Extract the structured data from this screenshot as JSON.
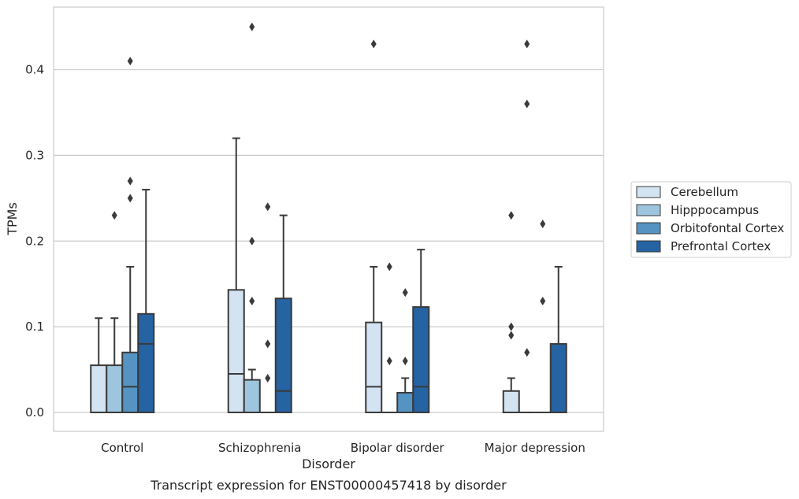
{
  "chart_data": {
    "type": "box",
    "xlabel": "Disorder",
    "ylabel": "TPMs",
    "caption": "Transcript expression for ENST00000457418 by disorder",
    "ylim": [
      -0.022,
      0.475
    ],
    "yticks": [
      0.0,
      0.1,
      0.2,
      0.3,
      0.4
    ],
    "ytick_labels": [
      "0.0",
      "0.1",
      "0.2",
      "0.3",
      "0.4"
    ],
    "grid": "horizontal",
    "legend_position": "right",
    "categories": [
      "Control",
      "Schizophrenia",
      "Bipolar disorder",
      "Major depression"
    ],
    "series": [
      {
        "name": "Cerebellum",
        "color": "#d3e3f1",
        "boxes": [
          {
            "whislo": 0.0,
            "q1": 0.0,
            "med": 0.0,
            "q3": 0.055,
            "whishi": 0.11,
            "fliers": []
          },
          {
            "whislo": 0.0,
            "q1": 0.0,
            "med": 0.045,
            "q3": 0.143,
            "whishi": 0.32,
            "fliers": []
          },
          {
            "whislo": 0.0,
            "q1": 0.0,
            "med": 0.03,
            "q3": 0.105,
            "whishi": 0.17,
            "fliers": [
              0.43
            ]
          },
          {
            "whislo": 0.0,
            "q1": 0.0,
            "med": 0.0,
            "q3": 0.025,
            "whishi": 0.04,
            "fliers": [
              0.09,
              0.1,
              0.23
            ]
          }
        ]
      },
      {
        "name": "Hipppocampus",
        "color": "#9ec5de",
        "boxes": [
          {
            "whislo": 0.0,
            "q1": 0.0,
            "med": 0.0,
            "q3": 0.055,
            "whishi": 0.11,
            "fliers": [
              0.23
            ]
          },
          {
            "whislo": 0.0,
            "q1": 0.0,
            "med": 0.0,
            "q3": 0.038,
            "whishi": 0.05,
            "fliers": [
              0.13,
              0.2,
              0.45
            ]
          },
          {
            "whislo": 0.0,
            "q1": 0.0,
            "med": 0.0,
            "q3": 0.0,
            "whishi": 0.0,
            "fliers": [
              0.06,
              0.17
            ]
          },
          {
            "whislo": 0.0,
            "q1": 0.0,
            "med": 0.0,
            "q3": 0.0,
            "whishi": 0.0,
            "fliers": [
              0.07,
              0.36,
              0.43
            ]
          }
        ]
      },
      {
        "name": "Orbitofontal Cortex",
        "color": "#5593c3",
        "boxes": [
          {
            "whislo": 0.0,
            "q1": 0.0,
            "med": 0.03,
            "q3": 0.07,
            "whishi": 0.17,
            "fliers": [
              0.25,
              0.27,
              0.41
            ]
          },
          {
            "whislo": 0.0,
            "q1": 0.0,
            "med": 0.0,
            "q3": 0.0,
            "whishi": 0.0,
            "fliers": [
              0.04,
              0.08,
              0.24
            ]
          },
          {
            "whislo": 0.0,
            "q1": 0.0,
            "med": 0.0,
            "q3": 0.023,
            "whishi": 0.04,
            "fliers": [
              0.06,
              0.14
            ]
          },
          {
            "whislo": 0.0,
            "q1": 0.0,
            "med": 0.0,
            "q3": 0.0,
            "whishi": 0.0,
            "fliers": [
              0.13,
              0.22
            ]
          }
        ]
      },
      {
        "name": "Prefrontal Cortex",
        "color": "#2563a3",
        "boxes": [
          {
            "whislo": 0.0,
            "q1": 0.0,
            "med": 0.08,
            "q3": 0.115,
            "whishi": 0.26,
            "fliers": []
          },
          {
            "whislo": 0.0,
            "q1": 0.0,
            "med": 0.025,
            "q3": 0.133,
            "whishi": 0.23,
            "fliers": []
          },
          {
            "whislo": 0.0,
            "q1": 0.0,
            "med": 0.03,
            "q3": 0.123,
            "whishi": 0.19,
            "fliers": []
          },
          {
            "whislo": 0.0,
            "q1": 0.0,
            "med": 0.0,
            "q3": 0.08,
            "whishi": 0.17,
            "fliers": []
          }
        ]
      }
    ]
  }
}
